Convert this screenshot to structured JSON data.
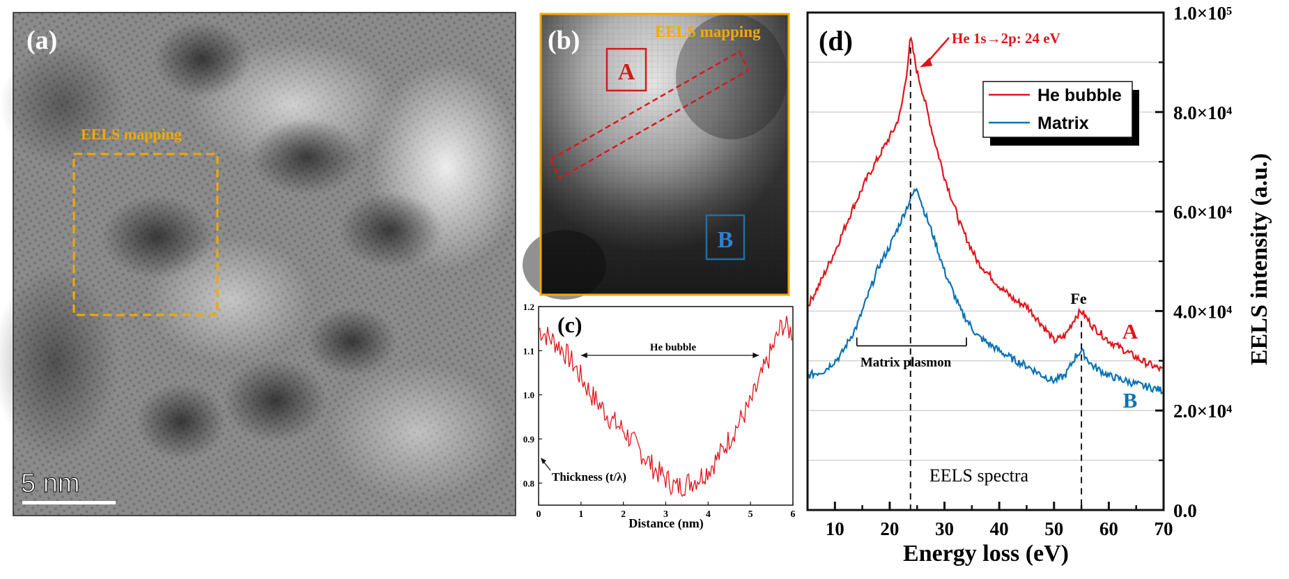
{
  "panel_a": {
    "label": "(a)",
    "roi_label": "EELS mapping",
    "scale_bar": "5 nm",
    "image_desc": "HRTEM lattice image"
  },
  "panel_b": {
    "label": "(b)",
    "title": "EELS mapping",
    "region_a": "A",
    "region_b": "B",
    "image_desc": "EELS thickness map"
  },
  "colors": {
    "he_bubble": "#e0141b",
    "matrix": "#0a72b4",
    "accent_orange": "#f2a900",
    "axis": "#111111"
  },
  "chart_data": [
    {
      "id": "c",
      "type": "line",
      "panel_label": "(c)",
      "title": "",
      "xlabel": "Distance (nm)",
      "ylabel": "",
      "xlim": [
        0,
        6
      ],
      "ylim": [
        0.75,
        1.2
      ],
      "xticks": [
        "0",
        "1",
        "2",
        "3",
        "4",
        "5",
        "6"
      ],
      "yticks": [
        "0.8",
        "0.9",
        "1.0",
        "1.1",
        "1.2"
      ],
      "annotations": {
        "bubble": "He bubble",
        "thickness": "Thickness (t/λ)"
      },
      "series": [
        {
          "name": "Thickness (t/λ)",
          "color": "#e0141b",
          "x": [
            0.0,
            0.25,
            0.5,
            0.75,
            1.0,
            1.25,
            1.5,
            1.75,
            2.0,
            2.25,
            2.5,
            2.75,
            3.0,
            3.25,
            3.5,
            3.75,
            4.0,
            4.25,
            4.5,
            4.75,
            5.0,
            5.25,
            5.5,
            5.75,
            6.0
          ],
          "values": [
            1.15,
            1.13,
            1.11,
            1.08,
            1.04,
            1.0,
            0.97,
            0.94,
            0.92,
            0.89,
            0.86,
            0.83,
            0.81,
            0.79,
            0.8,
            0.81,
            0.83,
            0.86,
            0.9,
            0.94,
            0.98,
            1.04,
            1.1,
            1.16,
            1.14
          ]
        }
      ]
    },
    {
      "id": "d",
      "type": "line",
      "panel_label": "(d)",
      "title": "EELS spectra",
      "xlabel": "Energy loss (eV)",
      "ylabel": "EELS intensity (a.u.)",
      "xlim": [
        5,
        70
      ],
      "ylim": [
        0,
        100000
      ],
      "xticks": [
        "10",
        "20",
        "30",
        "40",
        "50",
        "60",
        "70"
      ],
      "yticks": [
        "0.0",
        "2.0×10⁴",
        "4.0×10⁴",
        "6.0×10⁴",
        "8.0×10⁴",
        "1.0×10⁵"
      ],
      "legend": [
        "He bubble",
        "Matrix"
      ],
      "legend_position": "top-right",
      "annotations": {
        "he_peak": "He 1s→2p: 24 eV",
        "fe": "Fe",
        "plasmon": "Matrix plasmon",
        "curve_a": "A",
        "curve_b": "B"
      },
      "series": [
        {
          "name": "He bubble",
          "color": "#e0141b",
          "x": [
            5,
            7,
            10,
            13,
            16,
            19,
            21,
            22,
            23,
            23.8,
            25,
            26,
            28,
            30,
            33,
            36,
            40,
            43,
            45,
            48,
            50,
            52,
            54,
            55,
            57,
            60,
            63,
            66,
            70
          ],
          "values": [
            41000,
            45000,
            52000,
            60000,
            67000,
            73000,
            77000,
            80000,
            87000,
            95000,
            88000,
            84000,
            75000,
            67000,
            57000,
            50000,
            45000,
            42000,
            41000,
            37000,
            34000,
            35000,
            39000,
            40000,
            37000,
            34000,
            32000,
            30000,
            28000
          ]
        },
        {
          "name": "Matrix",
          "color": "#0a72b4",
          "x": [
            5,
            8,
            11,
            14,
            16,
            18,
            20,
            22,
            24,
            25,
            26,
            28,
            30,
            33,
            36,
            40,
            43,
            45,
            48,
            50,
            52,
            54,
            55,
            57,
            60,
            63,
            66,
            70
          ],
          "values": [
            27000,
            28000,
            31000,
            37000,
            43000,
            49000,
            53000,
            58000,
            63000,
            65000,
            61000,
            55000,
            48000,
            40000,
            35000,
            32000,
            30000,
            29000,
            27000,
            26000,
            27000,
            31000,
            32000,
            29000,
            27000,
            26000,
            25000,
            24000
          ]
        }
      ]
    }
  ]
}
